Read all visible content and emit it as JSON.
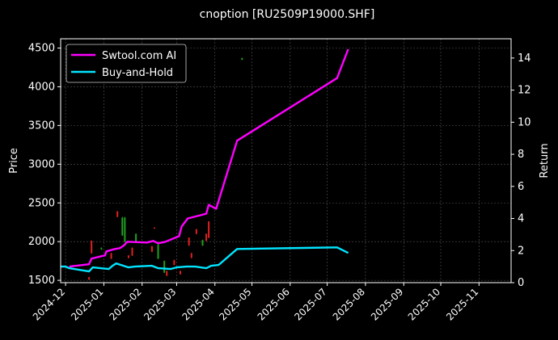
{
  "chart_data": {
    "type": "line",
    "title": "cnoption [RU2509P19000.SHF]",
    "ylabel_left": "Price",
    "ylabel_right": "Return",
    "x_ticks": [
      "2024-12",
      "2025-01",
      "2025-02",
      "2025-03",
      "2025-04",
      "2025-05",
      "2025-06",
      "2025-07",
      "2025-08",
      "2025-09",
      "2025-10",
      "2025-11"
    ],
    "xlim": [
      "2024-11-27",
      "2025-11-27"
    ],
    "ylim_left": [
      1470,
      4620
    ],
    "ylim_right": [
      0,
      15.2
    ],
    "y_ticks_left": [
      1500,
      2000,
      2500,
      3000,
      3500,
      4000,
      4500
    ],
    "y_ticks_right": [
      0,
      2,
      4,
      6,
      8,
      10,
      12,
      14
    ],
    "grid": true,
    "legend_position": "upper-left",
    "series": [
      {
        "name": "Swtool.com AI",
        "axis": "right",
        "color": "#ff00ff",
        "points": [
          [
            "2024-12-04",
            1.0
          ],
          [
            "2024-12-20",
            1.15
          ],
          [
            "2024-12-22",
            1.5
          ],
          [
            "2025-01-02",
            1.7
          ],
          [
            "2025-01-03",
            1.95
          ],
          [
            "2025-01-10",
            2.1
          ],
          [
            "2025-01-14",
            2.15
          ],
          [
            "2025-01-17",
            2.3
          ],
          [
            "2025-01-20",
            2.55
          ],
          [
            "2025-02-05",
            2.5
          ],
          [
            "2025-02-10",
            2.6
          ],
          [
            "2025-02-14",
            2.45
          ],
          [
            "2025-02-20",
            2.55
          ],
          [
            "2025-03-03",
            2.9
          ],
          [
            "2025-03-05",
            3.5
          ],
          [
            "2025-03-10",
            4.0
          ],
          [
            "2025-03-25",
            4.3
          ],
          [
            "2025-03-27",
            4.85
          ],
          [
            "2025-04-02",
            4.6
          ],
          [
            "2025-04-19",
            8.85
          ],
          [
            "2025-07-09",
            12.75
          ],
          [
            "2025-07-18",
            14.55
          ]
        ]
      },
      {
        "name": "Buy-and-Hold",
        "axis": "right",
        "color": "#00e5ff",
        "points": [
          [
            "2024-11-27",
            1.0
          ],
          [
            "2024-12-01",
            1.0
          ],
          [
            "2024-12-04",
            0.9
          ],
          [
            "2024-12-16",
            0.75
          ],
          [
            "2024-12-20",
            0.7
          ],
          [
            "2024-12-23",
            0.95
          ],
          [
            "2025-01-05",
            0.85
          ],
          [
            "2025-01-08",
            1.05
          ],
          [
            "2025-01-11",
            1.2
          ],
          [
            "2025-01-17",
            1.05
          ],
          [
            "2025-01-21",
            0.95
          ],
          [
            "2025-01-26",
            1.0
          ],
          [
            "2025-02-09",
            1.05
          ],
          [
            "2025-02-14",
            0.9
          ],
          [
            "2025-02-24",
            0.85
          ],
          [
            "2025-03-01",
            0.95
          ],
          [
            "2025-03-09",
            1.0
          ],
          [
            "2025-03-16",
            1.0
          ],
          [
            "2025-03-25",
            0.9
          ],
          [
            "2025-03-29",
            1.05
          ],
          [
            "2025-04-04",
            1.1
          ],
          [
            "2025-04-19",
            2.1
          ],
          [
            "2025-07-09",
            2.2
          ],
          [
            "2025-07-18",
            1.85
          ]
        ]
      }
    ],
    "candles": [
      {
        "date": "2024-12-20",
        "open": 1540,
        "close": 1510,
        "high": 1545,
        "low": 1505
      },
      {
        "date": "2024-12-22",
        "open": 2010,
        "close": 1850,
        "high": 2015,
        "low": 1845
      },
      {
        "date": "2024-12-30",
        "open": 1900,
        "close": 1920,
        "high": 1925,
        "low": 1895
      },
      {
        "date": "2025-01-07",
        "open": 1850,
        "close": 1780,
        "high": 1855,
        "low": 1775
      },
      {
        "date": "2025-01-12",
        "open": 2390,
        "close": 2320,
        "high": 2395,
        "low": 2315
      },
      {
        "date": "2025-01-16",
        "open": 2080,
        "close": 2310,
        "high": 2320,
        "low": 2075
      },
      {
        "date": "2025-01-18",
        "open": 2000,
        "close": 2310,
        "high": 2320,
        "low": 1990
      },
      {
        "date": "2025-01-21",
        "open": 1820,
        "close": 1790,
        "high": 1825,
        "low": 1785
      },
      {
        "date": "2025-01-24",
        "open": 1920,
        "close": 1820,
        "high": 1925,
        "low": 1815
      },
      {
        "date": "2025-01-27",
        "open": 2000,
        "close": 2100,
        "high": 2105,
        "low": 1995
      },
      {
        "date": "2025-02-09",
        "open": 1940,
        "close": 1870,
        "high": 1945,
        "low": 1865
      },
      {
        "date": "2025-02-11",
        "open": 2180,
        "close": 2170,
        "high": 2185,
        "low": 2165
      },
      {
        "date": "2025-02-14",
        "open": 1780,
        "close": 1960,
        "high": 1965,
        "low": 1775
      },
      {
        "date": "2025-02-19",
        "open": 1600,
        "close": 1750,
        "high": 1755,
        "low": 1595
      },
      {
        "date": "2025-02-21",
        "open": 1620,
        "close": 1560,
        "high": 1625,
        "low": 1555
      },
      {
        "date": "2025-02-27",
        "open": 1760,
        "close": 1700,
        "high": 1765,
        "low": 1695
      },
      {
        "date": "2025-03-04",
        "open": 1620,
        "close": 1580,
        "high": 1625,
        "low": 1575
      },
      {
        "date": "2025-03-11",
        "open": 2050,
        "close": 1950,
        "high": 2055,
        "low": 1945
      },
      {
        "date": "2025-03-13",
        "open": 1850,
        "close": 1790,
        "high": 1855,
        "low": 1785
      },
      {
        "date": "2025-03-17",
        "open": 2160,
        "close": 2100,
        "high": 2165,
        "low": 2095
      },
      {
        "date": "2025-03-22",
        "open": 1950,
        "close": 2020,
        "high": 2025,
        "low": 1945
      },
      {
        "date": "2025-03-25",
        "open": 2100,
        "close": 2010,
        "high": 2105,
        "low": 2005
      },
      {
        "date": "2025-03-27",
        "open": 2260,
        "close": 2050,
        "high": 2265,
        "low": 2045
      },
      {
        "date": "2025-04-23",
        "open": 4350,
        "close": 4370,
        "high": 4375,
        "low": 4345
      }
    ]
  }
}
